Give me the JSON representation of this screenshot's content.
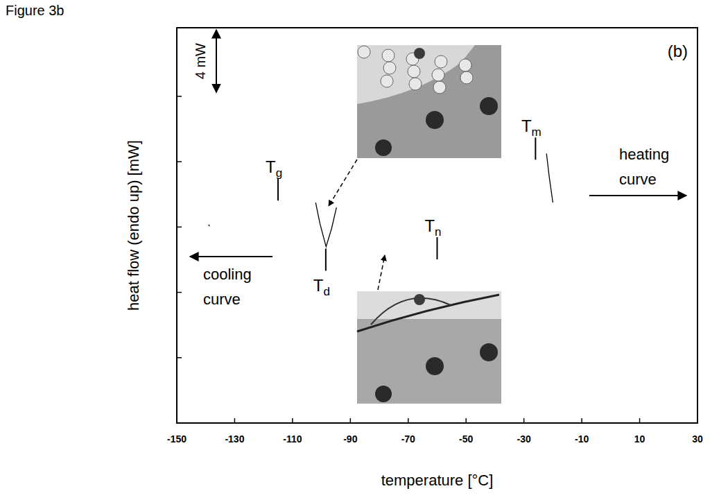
{
  "chart_data": {
    "type": "line",
    "figure_label": "Figure 3b",
    "panel_label": "(b)",
    "x_label": "temperature [°C]",
    "y_label": "heat flow (endo up) [mW]",
    "xlim": [
      -150,
      30
    ],
    "xticks": [
      -150,
      -130,
      -110,
      -90,
      -70,
      -50,
      -30,
      -10,
      10,
      30
    ],
    "ylim": [
      0,
      24.2
    ],
    "yticks": [
      4,
      8,
      12,
      16,
      20
    ],
    "tick_labels": "x",
    "scale_bar": {
      "value": 4,
      "label": "4 mW"
    },
    "series": [
      {
        "name": "cooling curve",
        "color": "#000000",
        "x": [
          -139.0,
          -138.7,
          -120.0,
          -102.0,
          -100.5,
          -98.4,
          -96.5,
          -94.8
        ],
        "values": [
          12.15,
          12.05,
          null,
          13.5,
          12.2,
          10.8,
          11.9,
          13.2
        ]
      },
      {
        "name": "heating curve",
        "color": "#000000",
        "x": [
          -22.2,
          -21.2,
          -20.0
        ],
        "values": [
          16.5,
          15.0,
          13.5
        ]
      }
    ],
    "annotations": [
      {
        "text": "T",
        "subscript": "g",
        "x": -115,
        "y": 14.3
      },
      {
        "text": "T",
        "subscript": "d",
        "x": -98.5,
        "y": 10.0
      },
      {
        "text": "T",
        "subscript": "n",
        "x": -60,
        "y": 10.7
      },
      {
        "text": "T",
        "subscript": "m",
        "x": -26,
        "y": 16.8
      }
    ]
  }
}
